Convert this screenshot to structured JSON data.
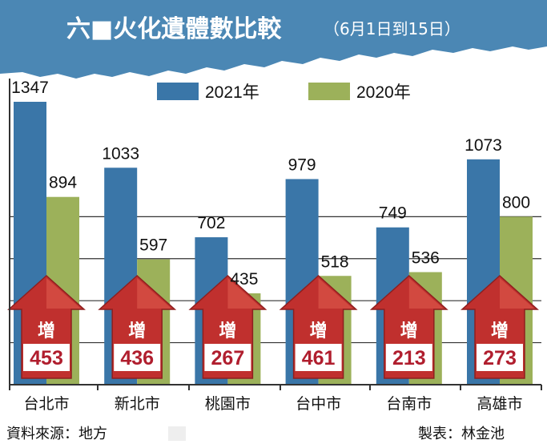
{
  "chart_data": {
    "type": "bar",
    "title": "六■火化遺體數比較",
    "subtitle": "（6月1日到15日）",
    "categories": [
      "台北市",
      "新北市",
      "桃園市",
      "台中市",
      "台南市",
      "高雄市"
    ],
    "series": [
      {
        "name": "2021年",
        "color": "#3a76a8",
        "values": [
          1347,
          1033,
          702,
          979,
          749,
          1073
        ]
      },
      {
        "name": "2020年",
        "color": "#9cb15a",
        "values": [
          894,
          597,
          435,
          518,
          536,
          800
        ]
      }
    ],
    "increase_label": "增",
    "increases": [
      453,
      436,
      267,
      461,
      213,
      273
    ],
    "ylim": [
      0,
      1400
    ],
    "gridlines": [
      200,
      400,
      600,
      800
    ],
    "legend_position": "top-right"
  },
  "footer": {
    "source": "資料來源：地方",
    "author": "製表：林金池"
  },
  "colors": {
    "banner": "#4b87b4",
    "arrow": "#c0302e",
    "arrow_dark": "#8e1f1f",
    "increase_box": "#ffffff"
  }
}
